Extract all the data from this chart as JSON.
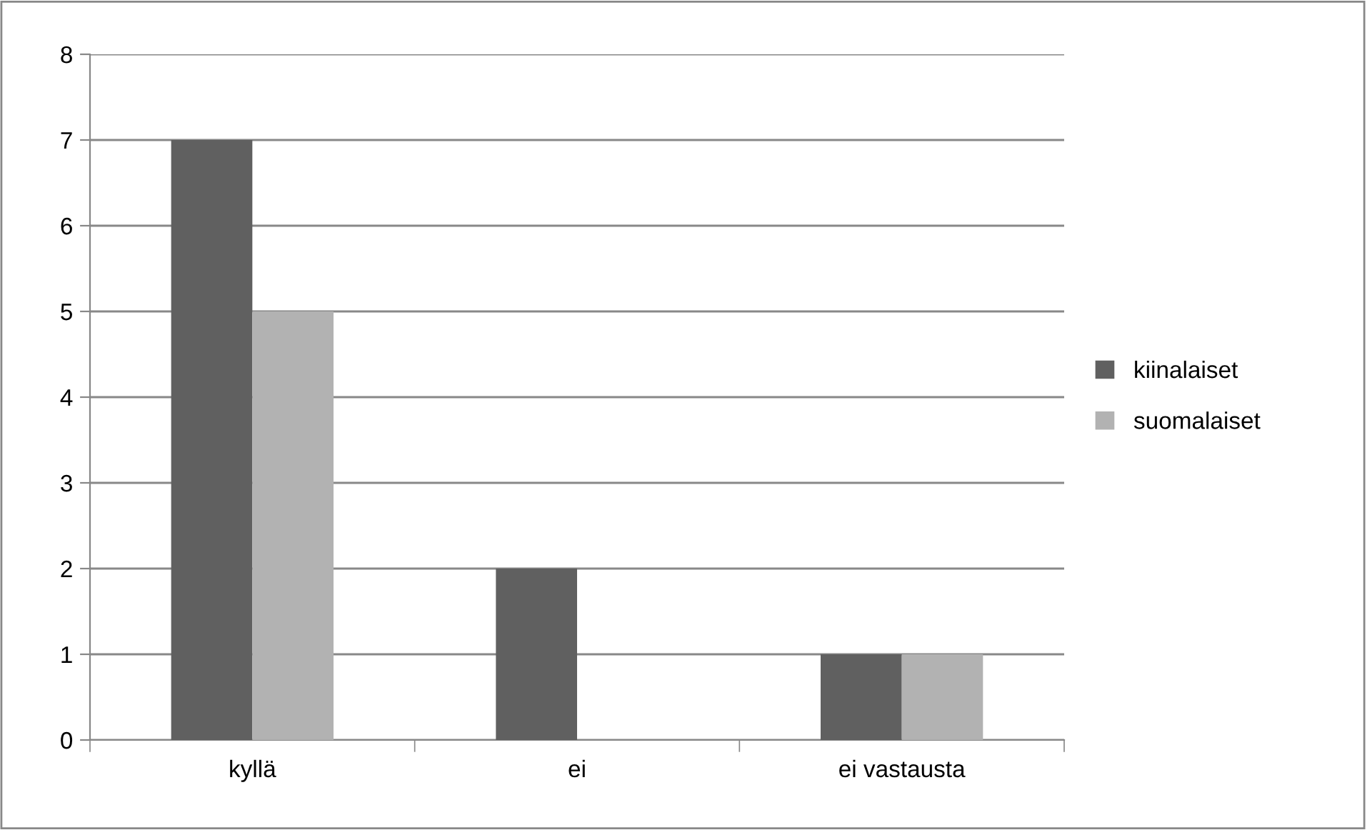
{
  "chart_data": {
    "type": "bar",
    "categories": [
      "kyllä",
      "ei",
      "ei vastausta"
    ],
    "series": [
      {
        "name": "kiinalaiset",
        "color": "#606060",
        "values": [
          7,
          2,
          1
        ]
      },
      {
        "name": "suomalaiset",
        "color": "#b2b2b2",
        "values": [
          5,
          0,
          1
        ]
      }
    ],
    "ylim": [
      0,
      8
    ],
    "yticks": [
      0,
      1,
      2,
      3,
      4,
      5,
      6,
      7,
      8
    ],
    "grid": "y",
    "legend": "right"
  }
}
